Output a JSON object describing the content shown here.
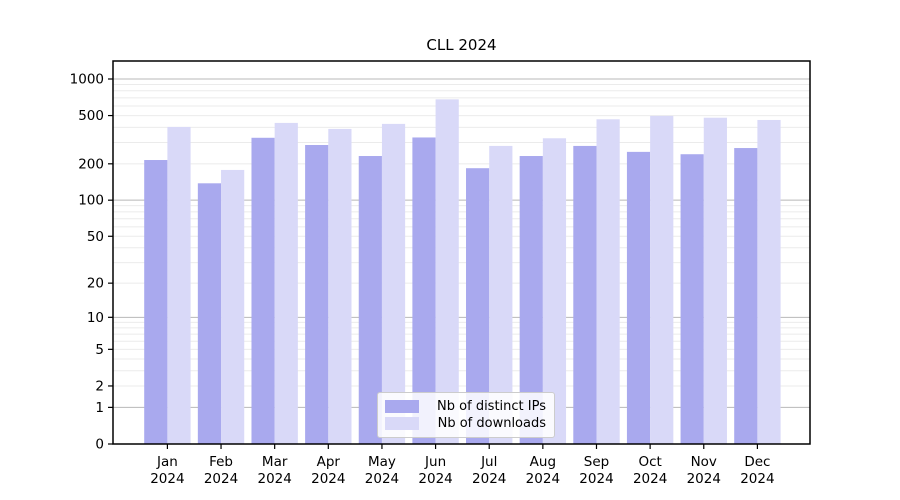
{
  "chart_title": "CLL 2024",
  "chart_data": {
    "type": "bar",
    "title": "CLL 2024",
    "categories": [
      "Jan 2024",
      "Feb 2024",
      "Mar 2024",
      "Apr 2024",
      "May 2024",
      "Jun 2024",
      "Jul 2024",
      "Aug 2024",
      "Sep 2024",
      "Oct 2024",
      "Nov 2024",
      "Dec 2024"
    ],
    "series": [
      {
        "name": "Nb of distinct IPs",
        "color": "#a9a9ee",
        "values": [
          215,
          138,
          328,
          286,
          232,
          330,
          184,
          232,
          281,
          251,
          240,
          270
        ]
      },
      {
        "name": "Nb of downloads",
        "color": "#d9d9f8",
        "values": [
          403,
          178,
          435,
          388,
          427,
          680,
          281,
          325,
          466,
          497,
          480,
          460
        ]
      }
    ],
    "xlabel": "",
    "ylabel": "",
    "yscale": "log1p",
    "y_ticks": [
      0,
      1,
      2,
      5,
      10,
      20,
      50,
      100,
      200,
      500,
      1000
    ],
    "ylim": [
      0,
      1400
    ],
    "grid": {
      "major_gridlines_at": [
        1,
        10,
        100,
        1000
      ],
      "minor_gridlines": "2-9 per decade",
      "major_color": "rgba(0,0,0,0.28)",
      "minor_color": "rgba(0,0,0,0.08)"
    },
    "legend_position": "bottom-center",
    "frame_color": "#000000",
    "background_color": "#ffffff"
  }
}
